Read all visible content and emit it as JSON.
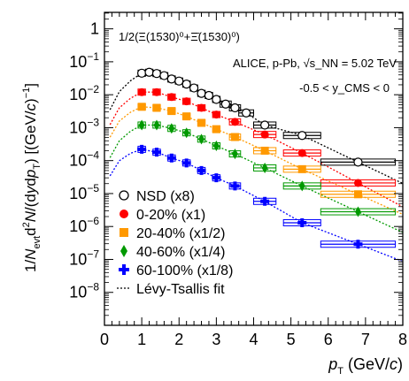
{
  "chart_data": {
    "type": "scatter",
    "title": "",
    "xlabel": "p_T (GeV/c)",
    "ylabel": "1/N_evt d²N/(dy dp_T) [(GeV/c)⁻¹]",
    "xlim": [
      0,
      8
    ],
    "ylim_log10": [
      -9,
      0.5
    ],
    "yscale": "log",
    "x_ticks": [
      "0",
      "1",
      "2",
      "3",
      "4",
      "5",
      "6",
      "7",
      "8"
    ],
    "annotations": {
      "particle": "1/2(Ξ(1530)⁰+Ξ̄(1530)⁰)",
      "system": "ALICE, p-Pb, √s_NN = 5.02 TeV",
      "rapidity": "-0.5 < y_CMS < 0"
    },
    "series": [
      {
        "name": "NSD (x8)",
        "marker": "circle-open",
        "color": "#000000",
        "x": [
          1.0,
          1.2,
          1.4,
          1.6,
          1.8,
          2.0,
          2.2,
          2.4,
          2.6,
          2.8,
          3.0,
          3.25,
          3.5,
          3.8,
          4.3,
          5.3,
          6.8
        ],
        "xerr": [
          0.1,
          0.1,
          0.1,
          0.1,
          0.1,
          0.1,
          0.1,
          0.1,
          0.1,
          0.1,
          0.1,
          0.15,
          0.15,
          0.2,
          0.3,
          0.5,
          1.0
        ],
        "y": [
          0.045,
          0.048,
          0.044,
          0.038,
          0.03,
          0.026,
          0.021,
          0.016,
          0.011,
          0.0095,
          0.0072,
          0.0052,
          0.004,
          0.0028,
          0.0012,
          0.00058,
          9e-05
        ]
      },
      {
        "name": "0-20% (x1)",
        "marker": "circle",
        "color": "#ff0000",
        "x": [
          1.0,
          1.4,
          1.8,
          2.2,
          2.6,
          3.0,
          3.5,
          4.3,
          5.3,
          6.8
        ],
        "xerr": [
          0.1,
          0.1,
          0.1,
          0.1,
          0.1,
          0.1,
          0.15,
          0.3,
          0.5,
          1.0
        ],
        "y": [
          0.012,
          0.012,
          0.0085,
          0.0063,
          0.004,
          0.0025,
          0.0015,
          0.00062,
          0.00017,
          2.1e-05
        ]
      },
      {
        "name": "20-40% (x1/2)",
        "marker": "square",
        "color": "#ff9900",
        "x": [
          1.0,
          1.4,
          1.8,
          2.2,
          2.6,
          3.0,
          3.5,
          4.3,
          5.3,
          6.8
        ],
        "xerr": [
          0.1,
          0.1,
          0.1,
          0.1,
          0.1,
          0.1,
          0.15,
          0.3,
          0.5,
          1.0
        ],
        "y": [
          0.0043,
          0.004,
          0.0032,
          0.0022,
          0.0014,
          0.0009,
          0.00052,
          0.0002,
          5.5e-05,
          9.5e-06
        ]
      },
      {
        "name": "40-60% (x1/4)",
        "marker": "diamond",
        "color": "#009900",
        "x": [
          1.0,
          1.4,
          1.8,
          2.2,
          2.6,
          3.0,
          3.5,
          4.3,
          5.3,
          6.8
        ],
        "xerr": [
          0.1,
          0.1,
          0.1,
          0.1,
          0.1,
          0.1,
          0.15,
          0.3,
          0.5,
          1.0
        ],
        "y": [
          0.0012,
          0.0012,
          0.00095,
          0.0007,
          0.00045,
          0.00028,
          0.00016,
          6e-05,
          1.7e-05,
          2.8e-06
        ]
      },
      {
        "name": "60-100% (x1/8)",
        "marker": "cross",
        "color": "#0000ff",
        "x": [
          1.0,
          1.4,
          1.8,
          2.2,
          2.6,
          3.0,
          3.5,
          4.3,
          5.3,
          6.8
        ],
        "xerr": [
          0.1,
          0.1,
          0.1,
          0.1,
          0.1,
          0.1,
          0.15,
          0.3,
          0.5,
          1.0
        ],
        "y": [
          0.00022,
          0.00018,
          0.00012,
          8.5e-05,
          5e-05,
          3e-05,
          1.7e-05,
          5.8e-06,
          1.3e-06,
          2.9e-07
        ]
      }
    ],
    "fit_legend": "Lévy-Tsallis fit",
    "legend_position": "bottom-left"
  }
}
